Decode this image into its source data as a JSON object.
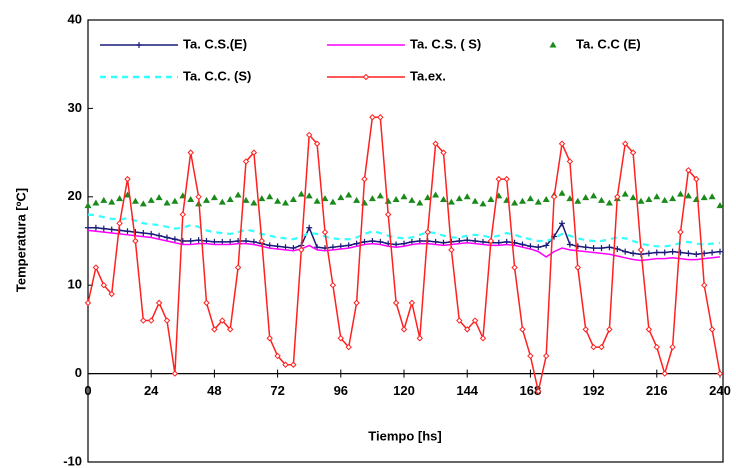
{
  "chart_data": {
    "type": "line",
    "xlabel": "Tiempo [hs]",
    "ylabel": "Temperatura [ºC]",
    "xlim": [
      0,
      240
    ],
    "ylim": [
      -10,
      40
    ],
    "xticks": [
      0,
      24,
      48,
      72,
      96,
      120,
      144,
      168,
      192,
      216,
      240
    ],
    "yticks": [
      -10,
      0,
      10,
      20,
      30,
      40
    ],
    "x": [
      0,
      3,
      6,
      9,
      12,
      15,
      18,
      21,
      24,
      27,
      30,
      33,
      36,
      39,
      42,
      45,
      48,
      51,
      54,
      57,
      60,
      63,
      66,
      69,
      72,
      75,
      78,
      81,
      84,
      87,
      90,
      93,
      96,
      99,
      102,
      105,
      108,
      111,
      114,
      117,
      120,
      123,
      126,
      129,
      132,
      135,
      138,
      141,
      144,
      147,
      150,
      153,
      156,
      159,
      162,
      165,
      168,
      171,
      174,
      177,
      180,
      183,
      186,
      189,
      192,
      195,
      198,
      201,
      204,
      207,
      210,
      213,
      216,
      219,
      222,
      225,
      228,
      231,
      234,
      237,
      240
    ],
    "series": [
      {
        "name": "Ta. C.S.(E)",
        "color": "#1a1a7a",
        "line_style": "solid",
        "marker": "plus",
        "values": [
          16.5,
          16.5,
          16.4,
          16.3,
          16.2,
          16.1,
          16.0,
          15.9,
          15.8,
          15.6,
          15.4,
          15.2,
          15.0,
          15.0,
          15.1,
          15.0,
          14.9,
          14.9,
          14.9,
          15.0,
          15.0,
          14.9,
          14.7,
          14.5,
          14.4,
          14.3,
          14.2,
          14.5,
          16.5,
          14.3,
          14.2,
          14.3,
          14.4,
          14.5,
          14.7,
          14.9,
          15.0,
          14.9,
          14.7,
          14.6,
          14.7,
          14.9,
          15.0,
          15.0,
          14.9,
          14.8,
          14.9,
          15.0,
          15.1,
          15.0,
          14.9,
          14.8,
          14.8,
          14.9,
          14.8,
          14.6,
          14.4,
          14.3,
          14.5,
          15.5,
          17.0,
          14.6,
          14.4,
          14.3,
          14.2,
          14.2,
          14.3,
          14.1,
          13.8,
          13.6,
          13.5,
          13.6,
          13.7,
          13.7,
          13.8,
          13.7,
          13.6,
          13.5,
          13.6,
          13.7,
          13.8
        ]
      },
      {
        "name": "Ta. C.S. ( S)",
        "color": "#ff00ff",
        "line_style": "solid",
        "marker": "none",
        "values": [
          16.2,
          16.1,
          16.0,
          15.9,
          15.8,
          15.7,
          15.6,
          15.5,
          15.4,
          15.2,
          15.0,
          14.8,
          14.6,
          14.6,
          14.7,
          14.7,
          14.6,
          14.6,
          14.6,
          14.7,
          14.7,
          14.6,
          14.4,
          14.2,
          14.1,
          14.0,
          13.9,
          14.1,
          14.5,
          14.0,
          13.9,
          14.0,
          14.1,
          14.2,
          14.4,
          14.6,
          14.7,
          14.6,
          14.4,
          14.3,
          14.4,
          14.6,
          14.7,
          14.7,
          14.6,
          14.5,
          14.6,
          14.7,
          14.8,
          14.7,
          14.6,
          14.5,
          14.5,
          14.6,
          14.5,
          14.3,
          14.1,
          13.8,
          13.2,
          13.8,
          14.2,
          14.0,
          13.9,
          13.8,
          13.7,
          13.6,
          13.5,
          13.3,
          13.1,
          12.9,
          12.8,
          12.9,
          13.0,
          13.0,
          13.1,
          13.0,
          12.9,
          12.9,
          13.0,
          13.1,
          13.2
        ]
      },
      {
        "name": "Ta. C.C (E)",
        "color": "#1a8a1a",
        "line_style": "none",
        "marker": "triangle",
        "values": [
          19.0,
          19.3,
          19.6,
          19.4,
          19.8,
          20.2,
          19.5,
          19.2,
          19.6,
          19.9,
          19.3,
          19.5,
          20.1,
          19.7,
          19.2,
          19.6,
          19.9,
          19.4,
          19.7,
          20.2,
          19.6,
          19.3,
          19.8,
          20.0,
          19.5,
          19.3,
          19.7,
          20.3,
          20.1,
          19.5,
          19.8,
          19.4,
          19.9,
          20.2,
          19.6,
          19.3,
          19.8,
          20.1,
          19.5,
          19.7,
          20.0,
          19.6,
          19.3,
          19.9,
          20.2,
          19.7,
          19.4,
          19.8,
          20.0,
          19.5,
          19.2,
          19.7,
          20.1,
          19.6,
          19.3,
          19.5,
          19.8,
          19.4,
          19.7,
          20.2,
          20.4,
          19.8,
          19.5,
          19.9,
          20.1,
          19.6,
          19.3,
          19.8,
          20.3,
          19.9,
          19.5,
          19.7,
          20.0,
          19.6,
          19.8,
          20.3,
          20.1,
          19.7,
          19.9,
          20.0,
          19.0
        ]
      },
      {
        "name": "Ta. C.C. (S)",
        "color": "#33ffff",
        "line_style": "dashed",
        "marker": "none",
        "values": [
          18.0,
          17.9,
          17.7,
          17.5,
          17.4,
          17.6,
          17.3,
          17.0,
          16.9,
          16.8,
          16.6,
          16.4,
          16.5,
          16.8,
          16.6,
          16.2,
          16.0,
          15.9,
          15.8,
          16.0,
          16.3,
          16.1,
          15.8,
          15.6,
          15.4,
          15.3,
          15.2,
          15.5,
          15.9,
          15.8,
          15.5,
          15.3,
          15.2,
          15.2,
          15.4,
          15.8,
          16.1,
          15.9,
          15.6,
          15.4,
          15.3,
          15.4,
          15.7,
          16.0,
          15.9,
          15.6,
          15.4,
          15.4,
          15.6,
          15.7,
          15.6,
          15.4,
          15.6,
          15.9,
          15.7,
          15.4,
          15.2,
          15.0,
          15.0,
          15.3,
          15.8,
          15.6,
          15.3,
          15.1,
          15.0,
          15.0,
          15.2,
          15.4,
          15.3,
          15.0,
          14.7,
          14.5,
          14.4,
          14.4,
          14.5,
          14.8,
          14.9,
          14.7,
          14.6,
          14.7,
          14.8
        ]
      },
      {
        "name": "Ta.ex.",
        "color": "#ff2020",
        "line_style": "solid",
        "marker": "diamond",
        "values": [
          8,
          12,
          10,
          9,
          17,
          22,
          15,
          6,
          6,
          8,
          6,
          0,
          18,
          25,
          20,
          8,
          5,
          6,
          5,
          12,
          24,
          25,
          15,
          4,
          2,
          1,
          1,
          14,
          27,
          26,
          16,
          10,
          4,
          3,
          8,
          22,
          29,
          29,
          18,
          8,
          5,
          8,
          4,
          16,
          26,
          25,
          14,
          6,
          5,
          6,
          4,
          15,
          22,
          22,
          12,
          5,
          2,
          -2,
          2,
          20,
          26,
          24,
          12,
          5,
          3,
          3,
          5,
          20,
          26,
          25,
          14,
          5,
          3,
          0,
          3,
          16,
          23,
          22,
          10,
          5,
          0
        ]
      }
    ]
  }
}
